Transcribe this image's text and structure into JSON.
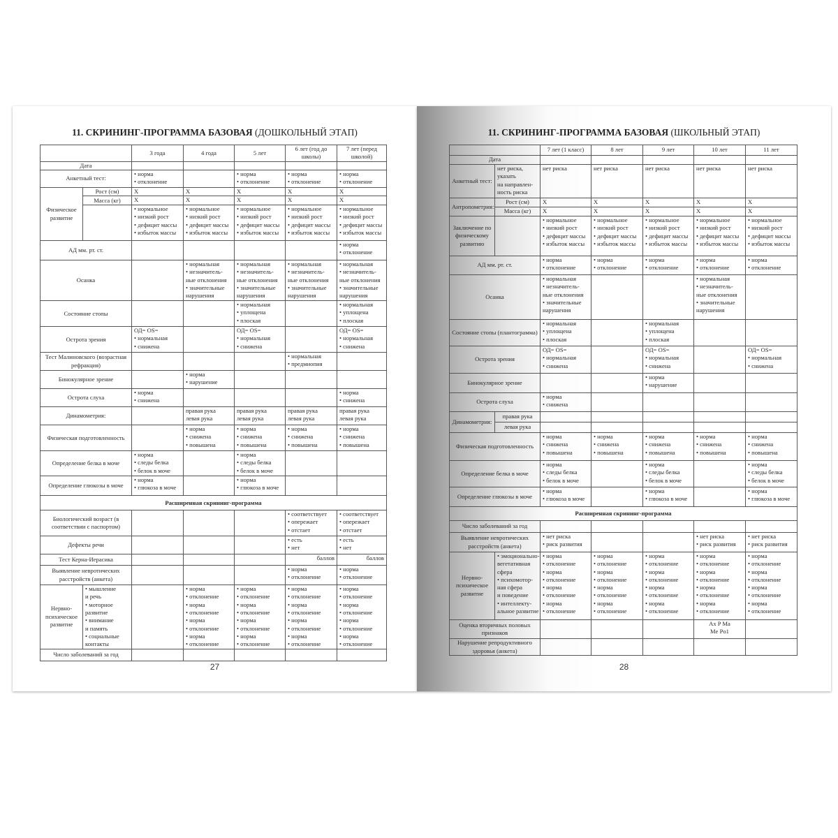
{
  "left": {
    "title_bold": "11. СКРИНИНГ-ПРОГРАММА БАЗОВАЯ",
    "title_rest": " (ДОШКОЛЬНЫЙ ЭТАП)",
    "page_number": "27",
    "columns": [
      "3 года",
      "4 года",
      "5 лет",
      "6 лет (год до школы)",
      "7 лет (перед школой)"
    ],
    "rows": [
      {
        "label": "Дата",
        "cells": [
          [],
          [],
          [],
          [],
          []
        ]
      },
      {
        "label": "Анкетный тест:",
        "cells": [
          [
            "• норма",
            "• отклонение"
          ],
          [],
          [
            "• норма",
            "• отклонение"
          ],
          [
            "• норма",
            "• отклонение"
          ],
          [
            "• норма",
            "• отклонение"
          ]
        ]
      },
      {
        "label": "Физическое развитие",
        "label_rows": 3,
        "sub": "Рост (см)",
        "cells": [
          [
            "X"
          ],
          [
            "X"
          ],
          [
            "X"
          ],
          [
            "X"
          ],
          [
            "X"
          ]
        ]
      },
      {
        "sub": "Масса (кг)",
        "cells": [
          [
            "X"
          ],
          [
            "X"
          ],
          [
            "X"
          ],
          [
            "X"
          ],
          [
            "X"
          ]
        ]
      },
      {
        "sub": "",
        "cells": [
          [
            "• нормальное",
            "• низкий рост",
            "• дефицит массы",
            "• избыток массы"
          ],
          [
            "• нормальное",
            "• низкий рост",
            "• дефицит массы",
            "• избыток массы"
          ],
          [
            "• нормальное",
            "• низкий рост",
            "• дефицит массы",
            "• избыток массы"
          ],
          [
            "• нормальное",
            "• низкий рост",
            "• дефицит массы",
            "• избыток массы"
          ],
          [
            "• нормальное",
            "• низкий рост",
            "• дефицит массы",
            "• избыток массы"
          ]
        ]
      },
      {
        "label": "АД мм. рт. ст.",
        "cells": [
          [],
          [],
          [],
          [],
          [
            "• норма",
            "• отклонение"
          ]
        ]
      },
      {
        "label": "Осанка",
        "cells": [
          [],
          [
            "• нормальная",
            "• незначитель-",
            "ные отклонения",
            "• значительные",
            "нарушения"
          ],
          [
            "• нормальная",
            "• незначитель-",
            "ные отклонения",
            "• значительные",
            "нарушения"
          ],
          [
            "• нормальная",
            "• незначитель-",
            "ные отклонения",
            "• значительные",
            "нарушения"
          ],
          [
            "• нормальная",
            "• незначитель-",
            "ные отклонения",
            "• значительные",
            "нарушения"
          ]
        ]
      },
      {
        "label": "Состояние стопы",
        "cells": [
          [],
          [],
          [
            "• нормальная",
            "• уплощена",
            "• плоская"
          ],
          [],
          [
            "• нормальная",
            "• уплощена",
            "• плоская"
          ]
        ]
      },
      {
        "label": "Острота зрения",
        "cells": [
          [
            "ОД= OS=",
            "• нормальная",
            "• снижена"
          ],
          [],
          [
            "ОД= OS=",
            "• нормальная",
            "• снижена"
          ],
          [],
          [
            "ОД= OS=",
            "• нормальная",
            "• снижена"
          ]
        ]
      },
      {
        "label": "Тест Малиновского (возрастная рефракция)",
        "cells": [
          [],
          [],
          [],
          [
            "• нормальная",
            "• предмиопия"
          ],
          []
        ]
      },
      {
        "label": "Бинокулярное зрение",
        "cells": [
          [],
          [
            "• норма",
            "• нарушение"
          ],
          [],
          [],
          []
        ]
      },
      {
        "label": "Острота слуха",
        "cells": [
          [
            "• норма",
            "• снижена"
          ],
          [],
          [],
          [],
          [
            "• норма",
            "• снижена"
          ]
        ]
      },
      {
        "label": "Динамометрия:",
        "cells": [
          [],
          [
            "правая рука",
            "левая рука"
          ],
          [
            "правая рука",
            "левая рука"
          ],
          [
            "правая рука",
            "левая рука"
          ],
          [
            "правая рука",
            "левая рука"
          ]
        ]
      },
      {
        "label": "Физическая подготовленность",
        "cells": [
          [],
          [
            "• норма",
            "• снижена",
            "• повышена"
          ],
          [
            "• норма",
            "• снижена",
            "• повышена"
          ],
          [
            "• норма",
            "• снижена",
            "• повышена"
          ],
          [
            "• норма",
            "• снижена",
            "• повышена"
          ]
        ]
      },
      {
        "label": "Определение белка в моче",
        "cells": [
          [
            "• норма",
            "• следы белка",
            "• белок в моче"
          ],
          [],
          [
            "• норма",
            "• следы белка",
            "• белок в моче"
          ],
          [],
          []
        ]
      },
      {
        "label": "Определение глюкозы в моче",
        "cells": [
          [
            "• норма",
            "• глюкоза в моче"
          ],
          [],
          [
            "• норма",
            "• глюкоза в моче"
          ],
          [],
          []
        ]
      },
      {
        "section": "Расширенная скрининг-программа"
      },
      {
        "label": "Биологический возраст (в соответствии с паспортом)",
        "cells": [
          [],
          [],
          [],
          [
            "• соответствует",
            "• опережает",
            "• отстает"
          ],
          [
            "• соответствует",
            "• опережает",
            "• отстает"
          ]
        ]
      },
      {
        "label": "Дефекты речи",
        "cells": [
          [],
          [],
          [],
          [
            "• есть",
            "• нет"
          ],
          [
            "• есть",
            "• нет"
          ]
        ]
      },
      {
        "label": "Тест Керна-Иерасика",
        "cells": [
          [],
          [],
          [],
          {
            "lines": [
              "баллов"
            ],
            "align": "right"
          },
          {
            "lines": [
              "баллов"
            ],
            "align": "right"
          }
        ]
      },
      {
        "label": "Выявление невротических расстройств (анкета)",
        "cells": [
          [],
          [],
          [],
          [
            "• норма",
            "• отклонение"
          ],
          [
            "• норма",
            "• отклонение"
          ]
        ]
      },
      {
        "label": "Нервно-психическое развитие",
        "sub": [
          "• мышление",
          "и речь",
          "• моторное",
          "развитие",
          "• внимание",
          "и память",
          "• социальные",
          "контакты"
        ],
        "cells": [
          [],
          [
            "• норма",
            "• отклонение",
            "• норма",
            "• отклонение",
            "• норма",
            "• отклонение",
            "• норма",
            "• отклонение"
          ],
          [
            "• норма",
            "• отклонение",
            "• норма",
            "• отклонение",
            "• норма",
            "• отклонение",
            "• норма",
            "• отклонение"
          ],
          [
            "• норма",
            "• отклонение",
            "• норма",
            "• отклонение",
            "• норма",
            "• отклонение",
            "• норма",
            "• отклонение"
          ],
          [
            "• норма",
            "• отклонение",
            "• норма",
            "• отклонение",
            "• норма",
            "• отклонение",
            "• норма",
            "• отклонение"
          ]
        ]
      },
      {
        "label": "Число заболеваний за год",
        "cells": [
          [],
          [],
          [],
          [],
          []
        ]
      }
    ]
  },
  "right": {
    "title_bold": "11. СКРИНИНГ-ПРОГРАММА БАЗОВАЯ",
    "title_rest": " (ШКОЛЬНЫЙ ЭТАП)",
    "page_number": "28",
    "columns": [
      "7 лет (1 класс)",
      "8 лет",
      "9 лет",
      "10 лет",
      "11 лет"
    ],
    "rows": [
      {
        "label": "Дата",
        "cells": [
          [],
          [],
          [],
          [],
          []
        ]
      },
      {
        "label": "Анкетный тест:",
        "sub": [
          "нет риска,",
          "указать",
          "на направлен-",
          "ность риска"
        ],
        "cells": [
          [
            "нет риска"
          ],
          [
            "нет риска"
          ],
          [
            "нет риска"
          ],
          [
            "нет риска"
          ],
          [
            "нет риска"
          ]
        ]
      },
      {
        "label": "Антропометрия:",
        "label_rows": 2,
        "sub": "Рост (см)",
        "cells": [
          [
            "X"
          ],
          [
            "X"
          ],
          [
            "X"
          ],
          [
            "X"
          ],
          [
            "X"
          ]
        ]
      },
      {
        "sub": "Масса (кг)",
        "cells": [
          [
            "X"
          ],
          [
            "X"
          ],
          [
            "X"
          ],
          [
            "X"
          ],
          [
            "X"
          ]
        ]
      },
      {
        "label": "Заключение по физическому развитию",
        "sub": "",
        "cells": [
          [
            "• нормальное",
            "• низкий рост",
            "• дефицит массы",
            "• избыток массы"
          ],
          [
            "• нормальное",
            "• низкий рост",
            "• дефицит массы",
            "• избыток массы"
          ],
          [
            "• нормальное",
            "• низкий рост",
            "• дефицит массы",
            "• избыток массы"
          ],
          [
            "• нормальное",
            "• низкий рост",
            "• дефицит массы",
            "• избыток массы"
          ],
          [
            "• нормальное",
            "• низкий рост",
            "• дефицит массы",
            "• избыток массы"
          ]
        ]
      },
      {
        "label": "АД мм. рт. ст.",
        "cells": [
          [
            "• норма",
            "• отклонение"
          ],
          [
            "• норма",
            "• отклонение"
          ],
          [
            "• норма",
            "• отклонение"
          ],
          [
            "• норма",
            "• отклонение"
          ],
          [
            "• норма",
            "• отклонение"
          ]
        ]
      },
      {
        "label": "Осанка",
        "cells": [
          [
            "• нормальная",
            "• незначитель-",
            "ные отклонения",
            "• значительные",
            "нарушения"
          ],
          [],
          [],
          [
            "• нормальная",
            "• незначитель-",
            "ные отклонения",
            "• значительные",
            "нарушения"
          ],
          []
        ]
      },
      {
        "label": "Состояние стопы (плантограмма)",
        "cells": [
          [
            "• нормальная",
            "• уплощена",
            "• плоская"
          ],
          [],
          [
            "• нормальная",
            "• уплощена",
            "• плоская"
          ],
          [],
          []
        ]
      },
      {
        "label": "Острота зрения",
        "cells": [
          [
            "ОД= OS=",
            "• нормальная",
            "• снижена"
          ],
          [],
          [
            "ОД= OS=",
            "• нормальная",
            "• снижена"
          ],
          [],
          [
            "ОД= OS=",
            "• нормальная",
            "• снижена"
          ]
        ]
      },
      {
        "label": "Бинокулярное зрение",
        "cells": [
          [],
          [],
          [
            "• норма",
            "• нарушение"
          ],
          [],
          []
        ]
      },
      {
        "label": "Острота слуха",
        "cells": [
          [
            "• норма",
            "• снижена"
          ],
          [],
          [],
          [],
          []
        ]
      },
      {
        "label": "Динамометрия:",
        "label_rows": 2,
        "sub": "правая рука",
        "cells": [
          [],
          [],
          [],
          [],
          []
        ]
      },
      {
        "sub": "левая рука",
        "cells": [
          [],
          [],
          [],
          [],
          []
        ]
      },
      {
        "label": "Физическая подготовленность",
        "cells": [
          [
            "• норма",
            "• снижена",
            "• повышена"
          ],
          [
            "• норма",
            "• снижена",
            "• повышена"
          ],
          [
            "• норма",
            "• снижена",
            "• повышена"
          ],
          [
            "• норма",
            "• снижена",
            "• повышена"
          ],
          [
            "• норма",
            "• снижена",
            "• повышена"
          ]
        ]
      },
      {
        "label": "Определение белка в моче",
        "cells": [
          [
            "• норма",
            "• следы белка",
            "• белок в моче"
          ],
          [],
          [
            "• норма",
            "• следы белка",
            "• белок в моче"
          ],
          [],
          [
            "• норма",
            "• следы белка",
            "• белок в моче"
          ]
        ]
      },
      {
        "label": "Определение глюкозы в моче",
        "cells": [
          [
            "• норма",
            "• глюкоза в моче"
          ],
          [],
          [
            "• норма",
            "• глюкоза в моче"
          ],
          [],
          [
            "• норма",
            "• глюкоза в моче"
          ]
        ]
      },
      {
        "section": "Расширенная скрининг-программа"
      },
      {
        "label": "Число заболеваний за год",
        "cells": [
          [],
          [],
          [],
          [],
          []
        ]
      },
      {
        "label": "Выявление невротических расстройств (анкета)",
        "cells": [
          [
            "• нет риска",
            "• риск развития"
          ],
          [],
          [],
          [
            "• нет риска",
            "• риск развития"
          ],
          [
            "• нет риска",
            "• риск развития"
          ]
        ]
      },
      {
        "label": "Нервно-психическое развитие",
        "sub": [
          "• эмоционально-",
          "вегетативная",
          "сфера",
          "• психомотор-",
          "ная сфера",
          "и поведение",
          "• интеллекту-",
          "альное развитие"
        ],
        "cells": [
          [
            "• норма",
            "• отклонение",
            "• норма",
            "• отклонение",
            "• норма",
            "• отклонение",
            "• норма",
            "• отклонение"
          ],
          [
            "• норма",
            "• отклонение",
            "• норма",
            "• отклонение",
            "• норма",
            "• отклонение",
            "• норма",
            "• отклонение"
          ],
          [
            "• норма",
            "• отклонение",
            "• норма",
            "• отклонение",
            "• норма",
            "• отклонение",
            "• норма",
            "• отклонение"
          ],
          [
            "• норма",
            "• отклонение",
            "• норма",
            "• отклонение",
            "• норма",
            "• отклонение",
            "• норма",
            "• отклонение"
          ],
          [
            "• норма",
            "• отклонение",
            "• норма",
            "• отклонение",
            "• норма",
            "• отклонение",
            "• норма",
            "• отклонение"
          ]
        ]
      },
      {
        "label": "Оценка вторичных половых признаков",
        "cells": [
          [],
          [],
          [],
          {
            "lines": [
              "Ax  P  Ma",
              "Me  Po1"
            ],
            "align": "center"
          },
          []
        ]
      },
      {
        "label": "Нарушение репродуктивного здоровья (анкета)",
        "cells": [
          [],
          [],
          [],
          [],
          []
        ]
      }
    ]
  }
}
